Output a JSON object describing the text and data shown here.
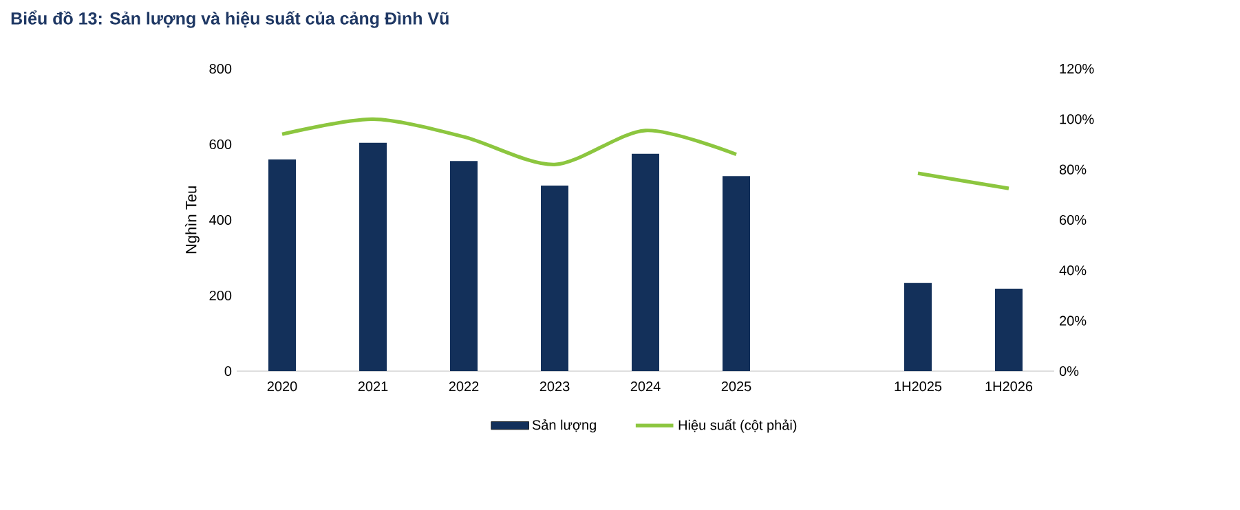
{
  "chart_data": {
    "type": "bar",
    "title": "Biểu đồ 13: Sản lượng và hiệu suất của cảng Đình Vũ",
    "ylabel": "Nghìn Teu",
    "categories": [
      "2020",
      "2021",
      "2022",
      "2023",
      "2024",
      "2025",
      null,
      "1H2025",
      "1H2026"
    ],
    "series": [
      {
        "name": "Sản lượng",
        "color": "#13305a",
        "values": [
          560,
          604,
          556,
          491,
          575,
          516,
          null,
          233,
          218
        ]
      },
      {
        "name": "Hiệu suất (cột phải)",
        "type": "line",
        "axis": "y2",
        "color": "#8cc63f",
        "values": [
          94,
          100,
          93,
          82,
          95.5,
          86,
          null,
          78.5,
          72.5
        ]
      }
    ],
    "ylim": [
      0,
      800
    ],
    "yticks": [
      0,
      200,
      400,
      600,
      800
    ],
    "y2lim": [
      0,
      120
    ],
    "y2ticks": [
      {
        "value": 0,
        "label": "0%"
      },
      {
        "value": 20,
        "label": "20%"
      },
      {
        "value": 40,
        "label": "40%"
      },
      {
        "value": 60,
        "label": "60%"
      },
      {
        "value": 80,
        "label": "80%"
      },
      {
        "value": 100,
        "label": "100%"
      },
      {
        "value": 120,
        "label": "120%"
      }
    ],
    "legend": "bottom"
  }
}
